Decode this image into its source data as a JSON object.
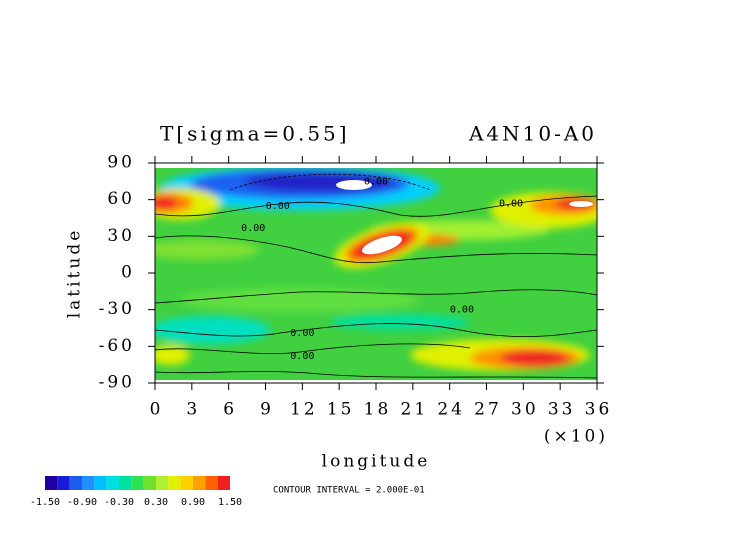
{
  "chart_data": {
    "type": "contour",
    "title": "T[sigma=0.55]",
    "subtitle": "A4N10-A0",
    "xlabel": "longitude",
    "ylabel": "latitude",
    "x_scale_label": "(×10)",
    "xlim": [
      0,
      36
    ],
    "xticks": [
      0,
      3,
      6,
      9,
      12,
      15,
      18,
      21,
      24,
      27,
      30,
      33,
      36
    ],
    "ylim": [
      -90,
      90
    ],
    "yticks": [
      -90,
      -60,
      -30,
      0,
      30,
      60,
      90
    ],
    "levels": [
      -1.5,
      -1.3,
      -1.1,
      -0.9,
      -0.7,
      -0.5,
      -0.3,
      -0.1,
      0.1,
      0.3,
      0.5,
      0.7,
      0.9,
      1.1,
      1.3,
      1.5
    ],
    "level_colors": [
      "#2000a0",
      "#1a1ad8",
      "#1e5cf0",
      "#1e90ff",
      "#00c0ff",
      "#00e0e0",
      "#00e0a0",
      "#30e050",
      "#70e030",
      "#b0f030",
      "#e0f000",
      "#ffd000",
      "#ffa000",
      "#ff6000",
      "#f02020"
    ],
    "colorbar_ticks": [
      {
        "value": -1.5,
        "label": "-1.50"
      },
      {
        "value": -0.9,
        "label": "-0.90"
      },
      {
        "value": -0.3,
        "label": "-0.30"
      },
      {
        "value": 0.3,
        "label": "0.30"
      },
      {
        "value": 0.9,
        "label": "0.90"
      },
      {
        "value": 1.5,
        "label": "1.50"
      }
    ],
    "contour_interval_label": "CONTOUR INTERVAL = 2.000E-01",
    "contour_labels": [
      {
        "text": "0.00",
        "x": 29,
        "y": 57
      },
      {
        "text": "0.00",
        "x": 10,
        "y": 55
      },
      {
        "text": "0.00",
        "x": 8,
        "y": 37
      },
      {
        "text": "0.00",
        "x": 25,
        "y": -30
      },
      {
        "text": "0.00",
        "x": 12,
        "y": -49
      },
      {
        "text": "0.00",
        "x": 12,
        "y": -68
      },
      {
        "text": "0.00",
        "x": 18,
        "y": 75
      }
    ]
  }
}
